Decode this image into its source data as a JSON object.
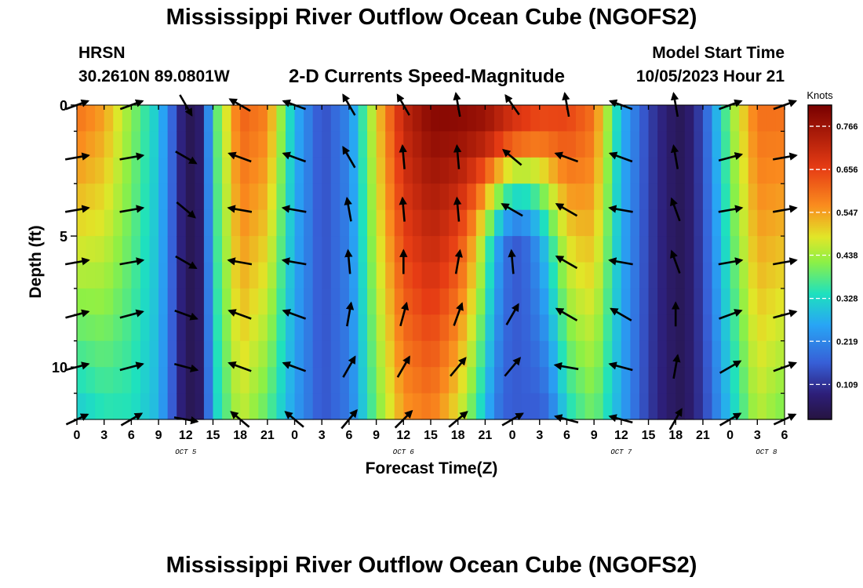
{
  "header": {
    "title": "Mississippi River Outflow Ocean Cube (NGOFS2)",
    "station": "HRSN",
    "coords": "30.2610N  89.0801W",
    "chart_title": "2-D Currents Speed-Magnitude",
    "model_start_label": "Model Start Time",
    "model_start_value": "10/05/2023 Hour 21"
  },
  "footer": {
    "title": "Mississippi River Outflow Ocean Cube (NGOFS2)"
  },
  "chart_data": {
    "type": "heatmap",
    "title": "2-D Currents Speed-Magnitude",
    "xlabel": "Forecast Time(Z)",
    "ylabel": "Depth (ft)",
    "x_ticks": [
      "0",
      "3",
      "6",
      "9",
      "12",
      "15",
      "18",
      "21",
      "0",
      "3",
      "6",
      "9",
      "12",
      "15",
      "18",
      "21",
      "0",
      "3",
      "6",
      "9",
      "12",
      "15",
      "18",
      "21",
      "0",
      "3",
      "6"
    ],
    "x_range_hours": [
      0,
      78
    ],
    "day_labels": [
      {
        "label": "OCT 5",
        "hour": 12
      },
      {
        "label": "OCT 6",
        "hour": 36
      },
      {
        "label": "OCT 7",
        "hour": 60
      },
      {
        "label": "OCT 8",
        "hour": 76
      }
    ],
    "y_ticks": [
      0,
      5,
      10
    ],
    "ylim": [
      0,
      12
    ],
    "y_inverted": true,
    "colorbar": {
      "label": "Knots",
      "ticks": [
        "0.109",
        "0.219",
        "0.328",
        "0.438",
        "0.547",
        "0.656",
        "0.766"
      ],
      "range": [
        0.02,
        0.82
      ]
    },
    "speed_profile": {
      "hours": [
        0,
        3,
        6,
        9,
        11,
        12,
        13,
        14,
        15,
        18,
        21,
        24,
        27,
        30,
        33,
        36,
        39,
        42,
        45,
        48,
        51,
        54,
        57,
        60,
        63,
        66,
        67,
        69,
        72,
        75,
        78
      ],
      "surface": [
        0.6,
        0.55,
        0.42,
        0.3,
        0.13,
        0.05,
        0.04,
        0.1,
        0.35,
        0.62,
        0.58,
        0.28,
        0.14,
        0.22,
        0.5,
        0.72,
        0.8,
        0.8,
        0.78,
        0.7,
        0.66,
        0.66,
        0.6,
        0.28,
        0.13,
        0.05,
        0.05,
        0.14,
        0.42,
        0.6,
        0.6
      ],
      "bottom": [
        0.3,
        0.34,
        0.34,
        0.28,
        0.12,
        0.05,
        0.04,
        0.08,
        0.3,
        0.46,
        0.38,
        0.25,
        0.15,
        0.2,
        0.4,
        0.55,
        0.58,
        0.5,
        0.4,
        0.2,
        0.14,
        0.35,
        0.4,
        0.26,
        0.12,
        0.05,
        0.05,
        0.12,
        0.3,
        0.45,
        0.4
      ],
      "dip": {
        "center_hour": 48.5,
        "width_hours": 4,
        "depth_start_ft": 1.2,
        "min_value": 0.16
      }
    },
    "vectors": {
      "hours": [
        0,
        6,
        12,
        18,
        24,
        30,
        36,
        42,
        48,
        54,
        60,
        66,
        72,
        78
      ],
      "depths_ft": [
        0,
        2,
        4,
        6,
        8,
        10,
        12
      ],
      "directions_deg": {
        "0": [
          20,
          20,
          300,
          150,
          160,
          120,
          120,
          100,
          125,
          100,
          160,
          100,
          20,
          20
        ],
        "2": [
          10,
          10,
          330,
          160,
          160,
          120,
          95,
          95,
          140,
          160,
          160,
          100,
          15,
          10
        ],
        "4": [
          10,
          10,
          320,
          170,
          170,
          100,
          95,
          95,
          150,
          150,
          170,
          110,
          10,
          10
        ],
        "6": [
          10,
          10,
          330,
          170,
          170,
          95,
          90,
          80,
          95,
          150,
          170,
          110,
          10,
          10
        ],
        "8": [
          15,
          15,
          340,
          160,
          160,
          80,
          75,
          70,
          60,
          150,
          150,
          90,
          20,
          15
        ],
        "10": [
          15,
          15,
          345,
          160,
          160,
          60,
          60,
          50,
          50,
          170,
          165,
          80,
          30,
          20
        ],
        "12": [
          25,
          30,
          350,
          140,
          140,
          50,
          45,
          40,
          30,
          165,
          165,
          60,
          30,
          25
        ]
      }
    }
  }
}
